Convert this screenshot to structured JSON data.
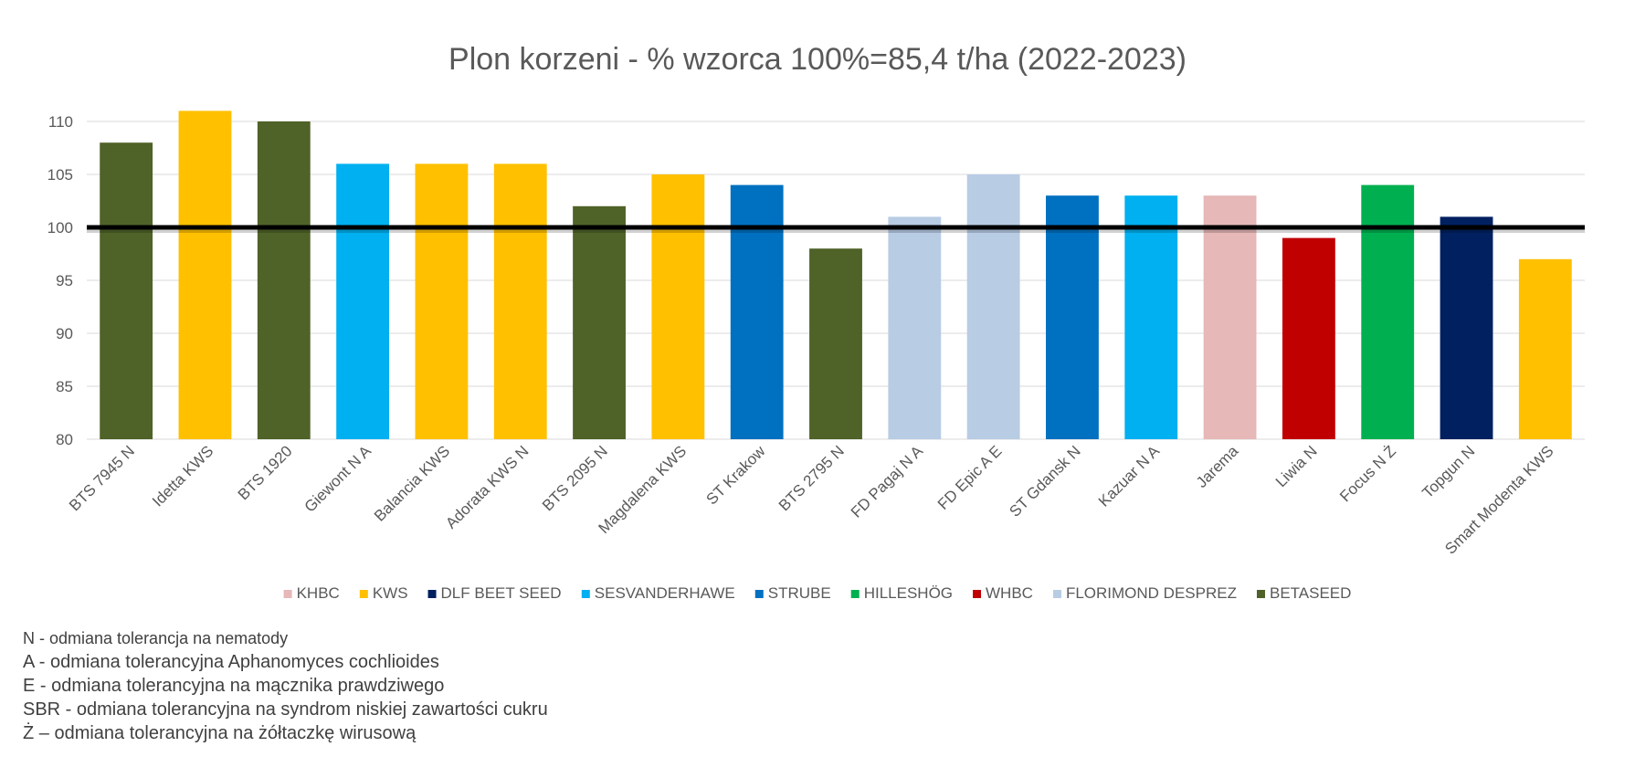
{
  "chart_data": {
    "type": "bar",
    "title": "Plon korzeni - % wzorca 100%=85,4 t/ha (2022-2023)",
    "xlabel": "",
    "ylabel": "",
    "ylim": [
      80,
      110
    ],
    "yticks": [
      80,
      85,
      90,
      95,
      100,
      105,
      110
    ],
    "grid": true,
    "legend_position": "bottom",
    "reference_line": 100,
    "categories": [
      "BTS 7945 N",
      "Idetta KWS",
      "BTS 1920",
      "Giewont N A",
      "Balancia KWS",
      "Adorata KWS N",
      "BTS 2095 N",
      "Magdalena KWS",
      "ST Krakow",
      "BTS 2795 N",
      "FD Pagaj N A",
      "FD Epic A E",
      "ST Gdansk N",
      "Kazuar N A",
      "Jarema",
      "Liwia N",
      "Focus N Ż",
      "Topgun N",
      "Smart Modenta KWS"
    ],
    "values": [
      108,
      111,
      110,
      106,
      106,
      106,
      102,
      105,
      104,
      98,
      101,
      105,
      103,
      103,
      103,
      99,
      104,
      101,
      97
    ],
    "groups": [
      "BETASEED",
      "KWS",
      "BETASEED",
      "SESVANDERHAWE",
      "KWS",
      "KWS",
      "BETASEED",
      "KWS",
      "STRUBE",
      "BETASEED",
      "FLORIMOND DESPREZ",
      "FLORIMOND DESPREZ",
      "STRUBE",
      "SESVANDERHAWE",
      "KHBC",
      "WHBC",
      "HILLESHÖG",
      "DLF BEET SEED",
      "KWS"
    ],
    "legend": [
      {
        "name": "KHBC",
        "color": "#E6B8B7"
      },
      {
        "name": "KWS",
        "color": "#FFC000"
      },
      {
        "name": "DLF BEET SEED",
        "color": "#002060"
      },
      {
        "name": "SESVANDERHAWE",
        "color": "#00B0F0"
      },
      {
        "name": "STRUBE",
        "color": "#0070C0"
      },
      {
        "name": "HILLESHÖG",
        "color": "#00B050"
      },
      {
        "name": "WHBC",
        "color": "#C00000"
      },
      {
        "name": "FLORIMOND DESPREZ",
        "color": "#B8CCE4"
      },
      {
        "name": "BETASEED",
        "color": "#4F6228"
      }
    ]
  },
  "notes": [
    "N - odmiana tolerancja na nematody",
    "A - odmiana tolerancyjna Aphanomyces cochlioides",
    "E - odmiana tolerancyjna na mącznika prawdziwego",
    "SBR - odmiana tolerancyjna na syndrom niskiej zawartości cukru",
    "Ż – odmiana tolerancyjna na żółtaczkę wirusową"
  ]
}
